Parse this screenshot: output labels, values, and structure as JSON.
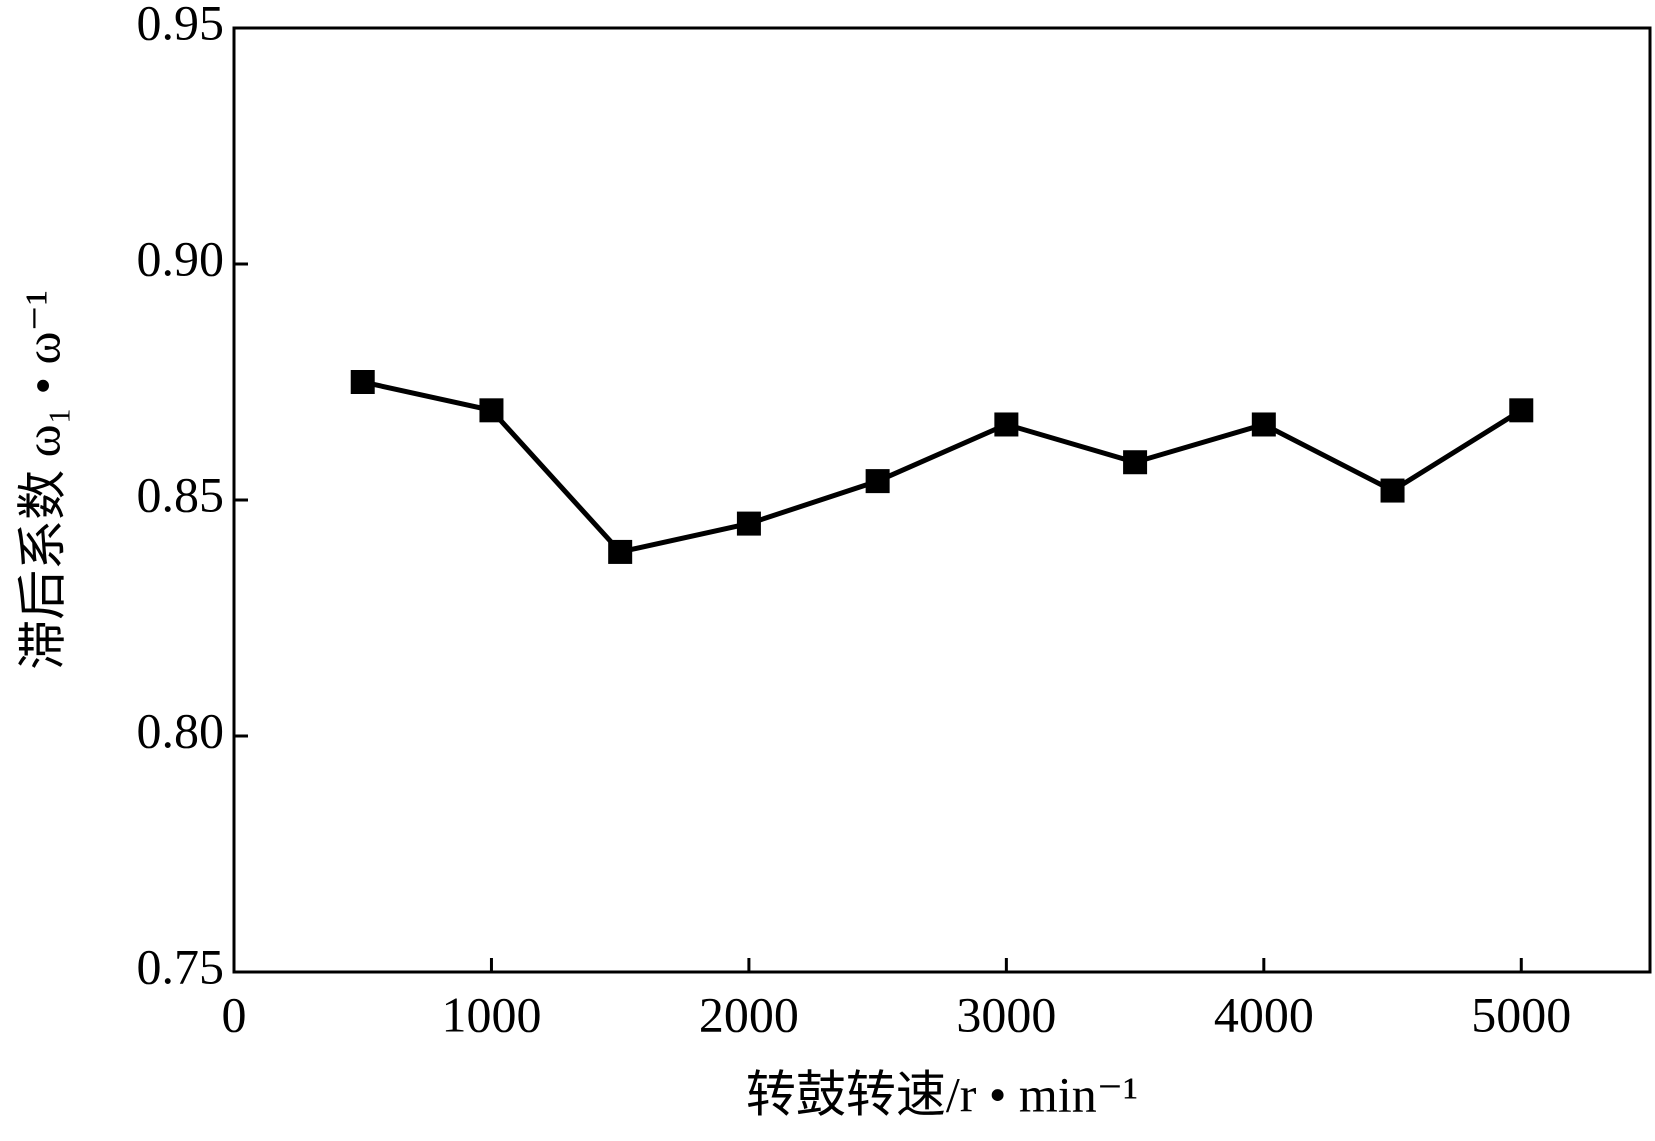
{
  "chart_data": {
    "type": "line",
    "x_label": "转鼓转速/r • min⁻¹",
    "y_label": "滞后系数 ω₁ • ω⁻¹",
    "x": [
      500,
      1000,
      1500,
      2000,
      2500,
      3000,
      3500,
      4000,
      4500,
      5000
    ],
    "series": [
      {
        "color": "#000000",
        "values": [
          0.875,
          0.869,
          0.839,
          0.845,
          0.854,
          0.866,
          0.858,
          0.866,
          0.852,
          0.869
        ]
      }
    ],
    "xlim": [
      0,
      5500
    ],
    "xticks": [
      0,
      1000,
      2000,
      3000,
      4000,
      5000
    ],
    "ylim": [
      0.75,
      0.95
    ],
    "yticks": [
      0.75,
      {
        "value": 0.8,
        "label": "0.80"
      },
      0.85,
      {
        "value": 0.9,
        "label": "0.90"
      },
      0.95
    ],
    "grid": false
  }
}
